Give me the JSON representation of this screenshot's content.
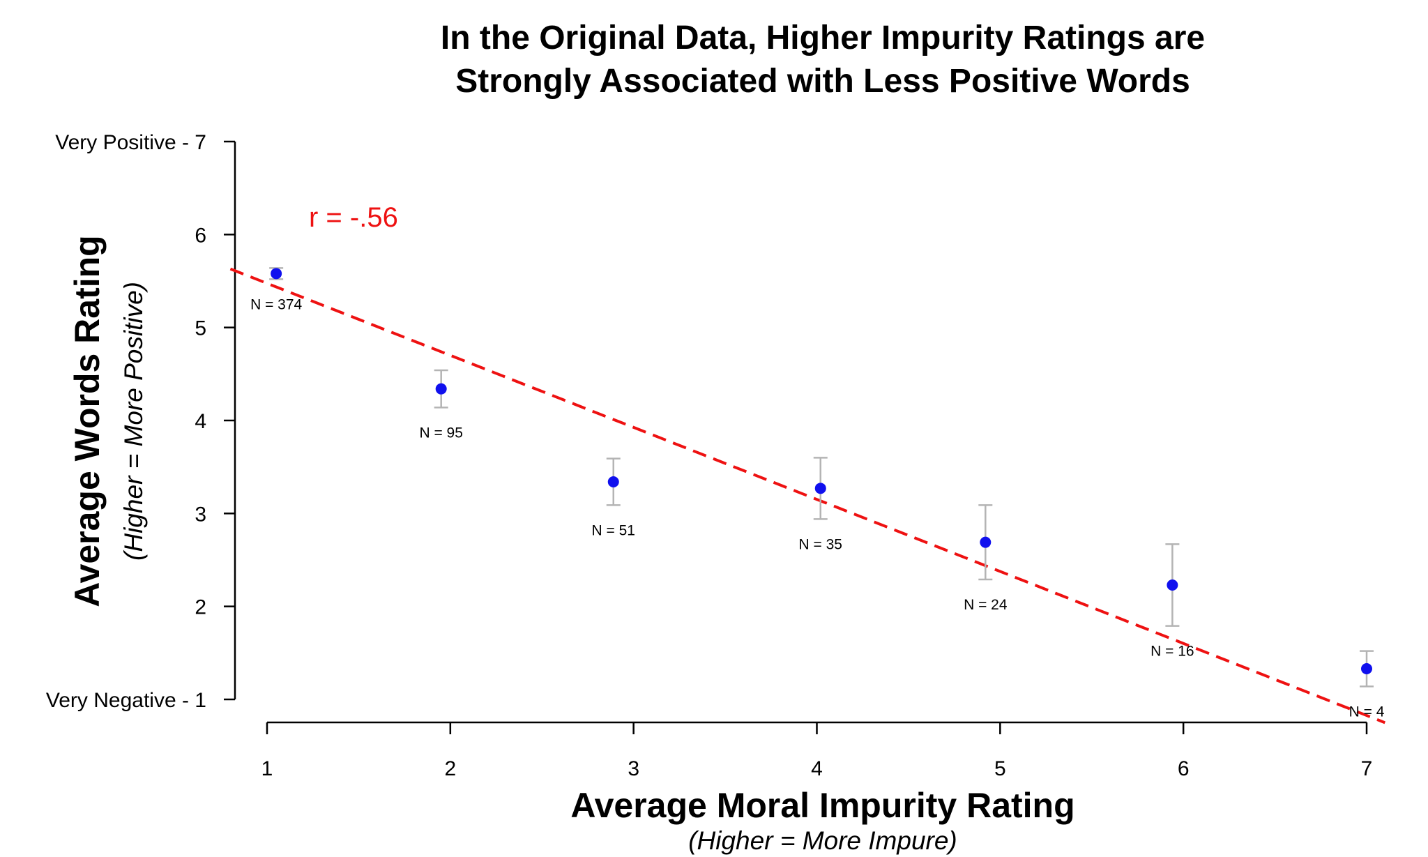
{
  "chart_data": {
    "type": "scatter",
    "title_lines": [
      "In the Original Data, Higher Impurity Ratings are",
      "Strongly Associated with Less Positive Words"
    ],
    "xlabel": "Average Moral Impurity Rating",
    "xlabel_sub": "(Higher = More Impure)",
    "ylabel": "Average Words Rating",
    "ylabel_sub": "(Higher = More Positive)",
    "xlim": [
      1,
      7
    ],
    "ylim": [
      1,
      7
    ],
    "x_ticks": [
      "1",
      "2",
      "3",
      "4",
      "5",
      "6",
      "7"
    ],
    "y_ticks": [
      {
        "value": 7,
        "label": "Very Positive - 7"
      },
      {
        "value": 6,
        "label": "6"
      },
      {
        "value": 5,
        "label": "5"
      },
      {
        "value": 4,
        "label": "4"
      },
      {
        "value": 3,
        "label": "3"
      },
      {
        "value": 2,
        "label": "2"
      },
      {
        "value": 1,
        "label": "Very Negative - 1"
      }
    ],
    "annotation": "r = -.56",
    "points": [
      {
        "x": 1.05,
        "y": 5.58,
        "lower": 5.52,
        "upper": 5.64,
        "n_label": "N = 374"
      },
      {
        "x": 1.95,
        "y": 4.34,
        "lower": 4.14,
        "upper": 4.54,
        "n_label": "N = 95"
      },
      {
        "x": 2.89,
        "y": 3.34,
        "lower": 3.09,
        "upper": 3.59,
        "n_label": "N = 51"
      },
      {
        "x": 4.02,
        "y": 3.27,
        "lower": 2.94,
        "upper": 3.6,
        "n_label": "N = 35"
      },
      {
        "x": 4.92,
        "y": 2.69,
        "lower": 2.29,
        "upper": 3.09,
        "n_label": "N = 24"
      },
      {
        "x": 5.94,
        "y": 2.23,
        "lower": 1.79,
        "upper": 2.67,
        "n_label": "N = 16"
      },
      {
        "x": 7.0,
        "y": 1.33,
        "lower": 1.14,
        "upper": 1.52,
        "n_label": "N = 4"
      }
    ],
    "fit_line": {
      "x1": 0.8,
      "y1": 5.63,
      "x2": 7.1,
      "y2": 0.75
    },
    "colors": {
      "point": "#1010ee",
      "error_bar": "#b4b4b4",
      "fit_line": "#ee1111",
      "annotation": "#ee1111",
      "axis": "#000000"
    }
  }
}
